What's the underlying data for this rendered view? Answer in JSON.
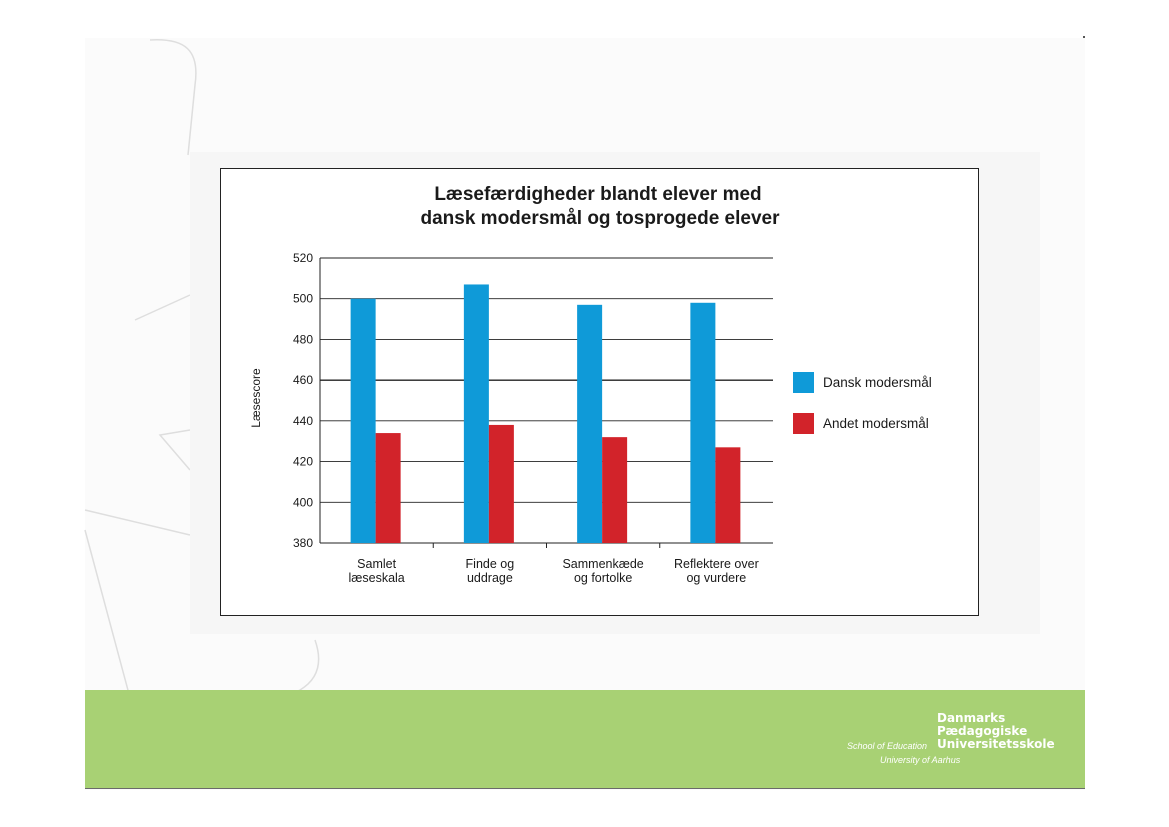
{
  "chart_data": {
    "type": "bar",
    "title_lines": [
      "Læsefærdigheder blandt elever med",
      "dansk modersmål og tosprogede elever"
    ],
    "ylabel": "Læsescore",
    "ylim": [
      380,
      520
    ],
    "yticks": [
      380,
      400,
      420,
      440,
      460,
      480,
      500,
      520
    ],
    "grid": "horizontal",
    "legend_position": "right",
    "categories": [
      [
        "Samlet",
        "læseskala"
      ],
      [
        "Finde og",
        "uddrage"
      ],
      [
        "Sammenkæde",
        "og fortolke"
      ],
      [
        "Reflektere over",
        "og vurdere"
      ]
    ],
    "series": [
      {
        "name": "Dansk modersmål",
        "color": "#0f9ad8",
        "values": [
          500,
          507,
          497,
          498
        ]
      },
      {
        "name": "Andet modersmål",
        "color": "#d2232a",
        "values": [
          434,
          438,
          432,
          427
        ]
      }
    ]
  },
  "logo": {
    "brand_lines": [
      "Danmarks",
      "Pædagogiske",
      "Universitetsskole"
    ],
    "school": "School of Education",
    "university": "University of Aarhus"
  }
}
